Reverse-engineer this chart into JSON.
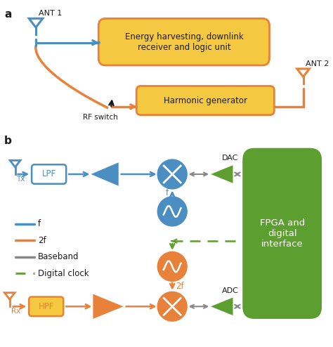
{
  "blue": "#4A8EC2",
  "orange": "#E8823A",
  "green": "#5C9E30",
  "gray": "#888888",
  "black": "#1a1a1a",
  "white": "#FFFFFF",
  "yellow_fill": "#F5C842",
  "yellow_edge": "#E8823A",
  "lpf_fill": "#FFFFFF",
  "lpf_edge": "#4A8EC2",
  "hpf_fill": "#F5C842",
  "hpf_edge": "#E8823A",
  "label_a": "a",
  "label_b": "b",
  "ant1_label": "ANT 1",
  "ant2_label": "ANT 2",
  "box1_text": "Energy harvesting, downlink\nreceiver and logic unit",
  "box2_text": "Harmonic generator",
  "switch_label": "RF switch",
  "fpga_label": "FPGA and\ndigital\ninterface",
  "lpf_label": "LPF",
  "hpf_label": "HPF",
  "dac_label": "DAC",
  "adc_label": "ADC",
  "tx_label": "Tx",
  "rx_label": "Rx",
  "freq_f": "f",
  "freq_2f": "2f",
  "legend_f": "f",
  "legend_2f": "2f",
  "legend_bb": "Baseband",
  "legend_clk": "Digital clock"
}
